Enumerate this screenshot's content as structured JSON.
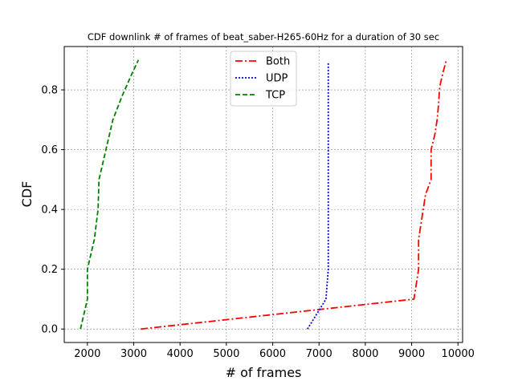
{
  "chart_data": {
    "type": "line",
    "title": "CDF downlink # of frames of beat_saber-H265-60Hz for a duration of 30 sec",
    "xlabel": "# of frames",
    "ylabel": "CDF",
    "xlim": [
      1500,
      10100
    ],
    "ylim": [
      -0.045,
      0.945
    ],
    "xticks": [
      2000,
      3000,
      4000,
      5000,
      6000,
      7000,
      8000,
      9000,
      10000
    ],
    "yticks": [
      0.0,
      0.2,
      0.4,
      0.6,
      0.8
    ],
    "grid": true,
    "legend_position": "top-center",
    "series": [
      {
        "name": "Both",
        "color": "#ff0000",
        "style": "dashdot",
        "x": [
          3150,
          9050,
          9150,
          9150,
          9200,
          9300,
          9420,
          9420,
          9500,
          9550,
          9580,
          9600,
          9620,
          9680,
          9750
        ],
        "y": [
          0.0,
          0.1,
          0.2,
          0.3,
          0.35,
          0.45,
          0.5,
          0.6,
          0.65,
          0.7,
          0.75,
          0.8,
          0.82,
          0.86,
          0.9
        ]
      },
      {
        "name": "UDP",
        "color": "#0000ff",
        "style": "dotted",
        "x": [
          6750,
          7150,
          7200,
          7200,
          7200,
          7200,
          7200
        ],
        "y": [
          0.0,
          0.1,
          0.2,
          0.4,
          0.6,
          0.8,
          0.89
        ]
      },
      {
        "name": "TCP",
        "color": "#008000",
        "style": "dashed",
        "x": [
          1850,
          2000,
          2000,
          2150,
          2230,
          2250,
          2400,
          2550,
          2750,
          2950,
          3100
        ],
        "y": [
          0.0,
          0.1,
          0.2,
          0.3,
          0.4,
          0.5,
          0.6,
          0.7,
          0.78,
          0.85,
          0.9
        ]
      }
    ]
  }
}
